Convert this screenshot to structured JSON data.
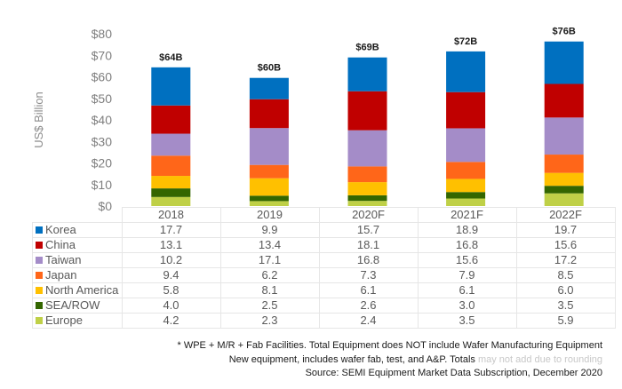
{
  "chart_data": {
    "type": "bar",
    "stacked": true,
    "title": "",
    "xlabel": "",
    "ylabel": "US$ Billion",
    "ylim": [
      0,
      80
    ],
    "yticks": [
      0,
      10,
      20,
      30,
      40,
      50,
      60,
      70,
      80
    ],
    "ytick_labels": [
      "$0",
      "$10",
      "$20",
      "$30",
      "$40",
      "$50",
      "$60",
      "$70",
      "$80"
    ],
    "grid": false,
    "legend_placement": "left (in data table)",
    "categories": [
      "2018",
      "2019",
      "2020F",
      "2021F",
      "2022F"
    ],
    "totals_labels": [
      "$64B",
      "$60B",
      "$69B",
      "$72B",
      "$76B"
    ],
    "series": [
      {
        "name": "Korea",
        "color": "#0070C0",
        "values": [
          17.7,
          9.9,
          15.7,
          18.9,
          19.7
        ]
      },
      {
        "name": "China",
        "color": "#C00000",
        "values": [
          13.1,
          13.4,
          18.1,
          16.8,
          15.6
        ]
      },
      {
        "name": "Taiwan",
        "color": "#A48CC8",
        "values": [
          10.2,
          17.1,
          16.8,
          15.6,
          17.2
        ]
      },
      {
        "name": "Japan",
        "color": "#FF6619",
        "values": [
          9.4,
          6.2,
          7.3,
          7.9,
          8.5
        ]
      },
      {
        "name": "North America",
        "color": "#FFC000",
        "values": [
          5.8,
          8.1,
          6.1,
          6.1,
          6.0
        ]
      },
      {
        "name": "SEA/ROW",
        "color": "#336600",
        "values": [
          4.0,
          2.5,
          2.6,
          3.0,
          3.5
        ]
      },
      {
        "name": "Europe",
        "color": "#BFD047",
        "values": [
          4.2,
          2.3,
          2.4,
          3.5,
          5.9
        ]
      }
    ],
    "stack_order": "bottom-to-top: Europe, SEA/ROW, North America, Japan, Taiwan, China, Korea"
  },
  "footnotes": {
    "line1": "* WPE + M/R + Fab Facilities. Total Equipment does NOT include Wafer Manufacturing Equipment",
    "line2": "New equipment, includes wafer fab, test, and A&P. Totals ",
    "line2_watermark": "may not add due to rounding",
    "line3": "Source: SEMI Equipment Market Data Subscription, December 2020"
  }
}
